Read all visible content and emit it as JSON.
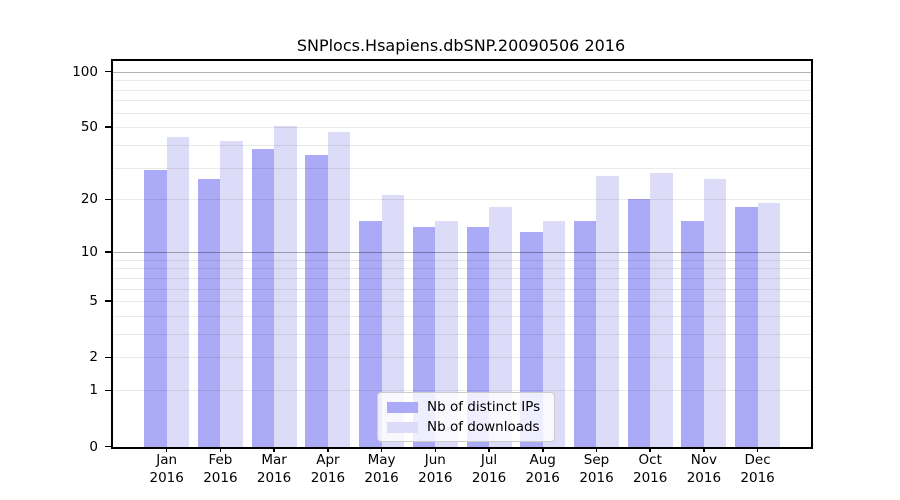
{
  "title": "SNPlocs.Hsapiens.dbSNP.20090506 2016",
  "colors": {
    "ips_bar": "#aaaaf7",
    "downloads_bar": "#dcdcf8",
    "axis": "#000000",
    "grid_major": "rgba(0,0,0,0.30)",
    "grid_minor": "rgba(0,0,0,0.085)",
    "legend_border": "#cccccc"
  },
  "legend": {
    "items": [
      {
        "label": "Nb of distinct IPs",
        "color": "#aaaaf7"
      },
      {
        "label": "Nb of downloads",
        "color": "#dcdcf8"
      }
    ]
  },
  "chart_data": {
    "type": "bar",
    "title": "SNPlocs.Hsapiens.dbSNP.20090506 2016",
    "year": "2016",
    "months": [
      "Jan",
      "Feb",
      "Mar",
      "Apr",
      "May",
      "Jun",
      "Jul",
      "Aug",
      "Sep",
      "Oct",
      "Nov",
      "Dec"
    ],
    "categories": [
      "Jan 2016",
      "Feb 2016",
      "Mar 2016",
      "Apr 2016",
      "May 2016",
      "Jun 2016",
      "Jul 2016",
      "Aug 2016",
      "Sep 2016",
      "Oct 2016",
      "Nov 2016",
      "Dec 2016"
    ],
    "series": [
      {
        "name": "Nb of distinct IPs",
        "color": "#aaaaf7",
        "values": [
          29,
          26,
          38,
          35,
          15,
          14,
          14,
          13,
          15,
          20,
          15,
          18
        ]
      },
      {
        "name": "Nb of downloads",
        "color": "#dcdcf8",
        "values": [
          44,
          42,
          51,
          47,
          21,
          15,
          18,
          15,
          27,
          28,
          26,
          19
        ]
      }
    ],
    "yscale": "log1p",
    "y_ticks": [
      100,
      50,
      20,
      10,
      5,
      2,
      1,
      0
    ],
    "y_major_grid": [
      100,
      10
    ],
    "y_minor_grid": [
      90,
      80,
      70,
      60,
      50,
      40,
      30,
      20,
      9,
      8,
      7,
      6,
      5,
      4,
      3,
      2,
      1
    ],
    "ylim": [
      0,
      110
    ],
    "grid": true,
    "legend_position": "bottom-center",
    "xlabel": "",
    "ylabel": ""
  }
}
